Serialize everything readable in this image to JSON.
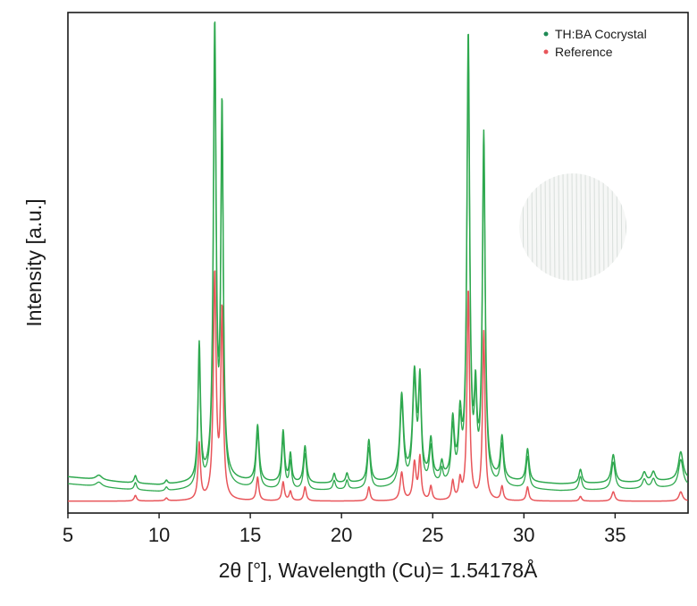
{
  "chart_data": {
    "type": "line",
    "title": "",
    "xlabel": "2θ [°], Wavelength (Cu)= 1.54178Å",
    "ylabel": "Intensity [a.u.]",
    "xlim": [
      5,
      39
    ],
    "ylim": [
      0,
      100
    ],
    "xticks": [
      5,
      10,
      15,
      20,
      25,
      30,
      35
    ],
    "grid": false,
    "legend_position": "top-right",
    "inset": "circular micrograph of crystal (faint)",
    "series": [
      {
        "name": "TH:BA Cocrystal",
        "color": "#2ea84e",
        "marker_color": "#1f8a55",
        "baseline": [
          [
            5,
            6.2
          ],
          [
            8,
            5.0
          ],
          [
            10,
            4.4
          ],
          [
            12,
            4.8
          ],
          [
            14,
            5.2
          ],
          [
            18,
            4.6
          ],
          [
            22,
            5.0
          ],
          [
            25,
            5.6
          ],
          [
            28,
            5.4
          ],
          [
            32,
            4.6
          ],
          [
            36,
            5.0
          ],
          [
            39,
            5.6
          ]
        ],
        "peaks": [
          {
            "x": 6.7,
            "h": 1.0,
            "w": 0.2
          },
          {
            "x": 8.7,
            "h": 1.6,
            "w": 0.08
          },
          {
            "x": 10.4,
            "h": 0.8,
            "w": 0.08
          },
          {
            "x": 12.2,
            "h": 29,
            "w": 0.08
          },
          {
            "x": 13.05,
            "h": 96,
            "w": 0.09
          },
          {
            "x": 13.45,
            "h": 78,
            "w": 0.08
          },
          {
            "x": 15.4,
            "h": 12,
            "w": 0.1
          },
          {
            "x": 16.8,
            "h": 11,
            "w": 0.09
          },
          {
            "x": 17.2,
            "h": 6,
            "w": 0.08
          },
          {
            "x": 18.0,
            "h": 8,
            "w": 0.1
          },
          {
            "x": 19.6,
            "h": 2,
            "w": 0.08
          },
          {
            "x": 20.3,
            "h": 2,
            "w": 0.08
          },
          {
            "x": 21.5,
            "h": 9,
            "w": 0.1
          },
          {
            "x": 23.3,
            "h": 18,
            "w": 0.12
          },
          {
            "x": 24.0,
            "h": 22,
            "w": 0.12
          },
          {
            "x": 24.3,
            "h": 20,
            "w": 0.09
          },
          {
            "x": 24.9,
            "h": 8,
            "w": 0.1
          },
          {
            "x": 25.5,
            "h": 3,
            "w": 0.08
          },
          {
            "x": 26.1,
            "h": 12,
            "w": 0.1
          },
          {
            "x": 26.5,
            "h": 12,
            "w": 0.1
          },
          {
            "x": 26.95,
            "h": 94,
            "w": 0.09
          },
          {
            "x": 27.35,
            "h": 16,
            "w": 0.08
          },
          {
            "x": 27.8,
            "h": 73,
            "w": 0.09
          },
          {
            "x": 28.8,
            "h": 9,
            "w": 0.1
          },
          {
            "x": 30.2,
            "h": 7,
            "w": 0.1
          },
          {
            "x": 33.1,
            "h": 3,
            "w": 0.1
          },
          {
            "x": 34.9,
            "h": 6,
            "w": 0.12
          },
          {
            "x": 36.6,
            "h": 2,
            "w": 0.12
          },
          {
            "x": 37.1,
            "h": 2,
            "w": 0.12
          },
          {
            "x": 38.6,
            "h": 6,
            "w": 0.15
          }
        ]
      },
      {
        "name": "Reference",
        "color": "#e8555a",
        "marker_color": "#e8555a",
        "baseline": [
          [
            5,
            1.0
          ],
          [
            39,
            1.0
          ]
        ],
        "peaks": [
          {
            "x": 8.7,
            "h": 1.2,
            "w": 0.08
          },
          {
            "x": 10.4,
            "h": 0.6,
            "w": 0.08
          },
          {
            "x": 12.2,
            "h": 12,
            "w": 0.08
          },
          {
            "x": 13.05,
            "h": 48,
            "w": 0.09
          },
          {
            "x": 13.45,
            "h": 40,
            "w": 0.08
          },
          {
            "x": 15.4,
            "h": 5,
            "w": 0.08
          },
          {
            "x": 16.8,
            "h": 4,
            "w": 0.08
          },
          {
            "x": 17.2,
            "h": 2,
            "w": 0.08
          },
          {
            "x": 18.0,
            "h": 3,
            "w": 0.08
          },
          {
            "x": 21.5,
            "h": 3,
            "w": 0.08
          },
          {
            "x": 23.3,
            "h": 6,
            "w": 0.1
          },
          {
            "x": 24.0,
            "h": 8,
            "w": 0.1
          },
          {
            "x": 24.3,
            "h": 9,
            "w": 0.08
          },
          {
            "x": 24.9,
            "h": 3,
            "w": 0.08
          },
          {
            "x": 26.1,
            "h": 4,
            "w": 0.08
          },
          {
            "x": 26.5,
            "h": 4,
            "w": 0.08
          },
          {
            "x": 26.95,
            "h": 45,
            "w": 0.08
          },
          {
            "x": 27.8,
            "h": 36,
            "w": 0.08
          },
          {
            "x": 28.8,
            "h": 3,
            "w": 0.08
          },
          {
            "x": 30.2,
            "h": 3,
            "w": 0.08
          },
          {
            "x": 33.1,
            "h": 1,
            "w": 0.08
          },
          {
            "x": 34.9,
            "h": 2,
            "w": 0.1
          },
          {
            "x": 38.6,
            "h": 2,
            "w": 0.12
          }
        ]
      }
    ]
  }
}
